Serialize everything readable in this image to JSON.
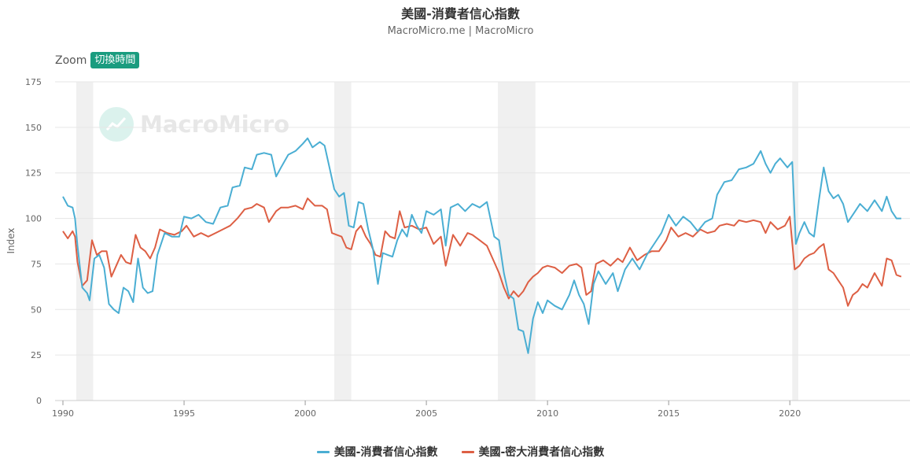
{
  "header": {
    "title": "美國-消費者信心指數",
    "subtitle": "MacroMicro.me | MacroMicro"
  },
  "controls": {
    "zoom_label": "Zoom",
    "toggle_time_label": "切換時間"
  },
  "watermark": {
    "text": "MacroMicro",
    "icon": "macromicro-logo-icon"
  },
  "colors": {
    "series1": "#4aaed3",
    "series2": "#dd5f44",
    "recession": "#f0f0f0",
    "grid": "#e6e6e6",
    "accent": "#1a9c7f"
  },
  "chart_data": {
    "type": "line",
    "ylabel": "Index",
    "ylim": [
      0,
      175
    ],
    "yticks": [
      0,
      25,
      50,
      75,
      100,
      125,
      150,
      175
    ],
    "xlim": [
      1990.0,
      2024.7
    ],
    "xticks": [
      1990,
      1995,
      2000,
      2005,
      2010,
      2015,
      2020
    ],
    "grid": true,
    "legend_position": "bottom-center",
    "recession_bands": [
      [
        1990.55,
        1991.25
      ],
      [
        2001.2,
        2001.9
      ],
      [
        2007.95,
        2009.5
      ],
      [
        2020.1,
        2020.35
      ]
    ],
    "series": [
      {
        "name": "美國-消費者信心指數",
        "points": [
          [
            1990.0,
            112
          ],
          [
            1990.2,
            107
          ],
          [
            1990.4,
            106
          ],
          [
            1990.5,
            100
          ],
          [
            1990.6,
            85
          ],
          [
            1990.8,
            62
          ],
          [
            1991.0,
            59
          ],
          [
            1991.1,
            55
          ],
          [
            1991.3,
            78
          ],
          [
            1991.5,
            80
          ],
          [
            1991.7,
            73
          ],
          [
            1991.9,
            53
          ],
          [
            1992.1,
            50
          ],
          [
            1992.3,
            48
          ],
          [
            1992.5,
            62
          ],
          [
            1992.7,
            60
          ],
          [
            1992.9,
            54
          ],
          [
            1993.1,
            78
          ],
          [
            1993.3,
            62
          ],
          [
            1993.5,
            59
          ],
          [
            1993.7,
            60
          ],
          [
            1993.9,
            80
          ],
          [
            1994.2,
            92
          ],
          [
            1994.5,
            90
          ],
          [
            1994.8,
            90
          ],
          [
            1995.0,
            101
          ],
          [
            1995.3,
            100
          ],
          [
            1995.6,
            102
          ],
          [
            1995.9,
            98
          ],
          [
            1996.2,
            97
          ],
          [
            1996.5,
            106
          ],
          [
            1996.8,
            107
          ],
          [
            1997.0,
            117
          ],
          [
            1997.3,
            118
          ],
          [
            1997.5,
            128
          ],
          [
            1997.8,
            127
          ],
          [
            1998.0,
            135
          ],
          [
            1998.3,
            136
          ],
          [
            1998.6,
            135
          ],
          [
            1998.8,
            123
          ],
          [
            1999.0,
            128
          ],
          [
            1999.3,
            135
          ],
          [
            1999.6,
            137
          ],
          [
            1999.9,
            141
          ],
          [
            2000.1,
            144
          ],
          [
            2000.3,
            139
          ],
          [
            2000.6,
            142
          ],
          [
            2000.8,
            140
          ],
          [
            2001.0,
            128
          ],
          [
            2001.2,
            116
          ],
          [
            2001.4,
            112
          ],
          [
            2001.6,
            114
          ],
          [
            2001.8,
            96
          ],
          [
            2002.0,
            95
          ],
          [
            2002.2,
            109
          ],
          [
            2002.4,
            108
          ],
          [
            2002.6,
            94
          ],
          [
            2002.8,
            83
          ],
          [
            2003.0,
            64
          ],
          [
            2003.2,
            81
          ],
          [
            2003.4,
            80
          ],
          [
            2003.6,
            79
          ],
          [
            2003.8,
            88
          ],
          [
            2004.0,
            94
          ],
          [
            2004.2,
            90
          ],
          [
            2004.4,
            102
          ],
          [
            2004.6,
            96
          ],
          [
            2004.8,
            92
          ],
          [
            2005.0,
            104
          ],
          [
            2005.3,
            102
          ],
          [
            2005.6,
            105
          ],
          [
            2005.8,
            85
          ],
          [
            2006.0,
            106
          ],
          [
            2006.3,
            108
          ],
          [
            2006.6,
            104
          ],
          [
            2006.9,
            108
          ],
          [
            2007.2,
            106
          ],
          [
            2007.5,
            109
          ],
          [
            2007.8,
            90
          ],
          [
            2008.0,
            88
          ],
          [
            2008.2,
            70
          ],
          [
            2008.4,
            58
          ],
          [
            2008.6,
            56
          ],
          [
            2008.8,
            39
          ],
          [
            2009.0,
            38
          ],
          [
            2009.2,
            26
          ],
          [
            2009.4,
            45
          ],
          [
            2009.6,
            54
          ],
          [
            2009.8,
            48
          ],
          [
            2010.0,
            55
          ],
          [
            2010.3,
            52
          ],
          [
            2010.6,
            50
          ],
          [
            2010.9,
            58
          ],
          [
            2011.1,
            66
          ],
          [
            2011.3,
            58
          ],
          [
            2011.5,
            53
          ],
          [
            2011.7,
            42
          ],
          [
            2011.9,
            64
          ],
          [
            2012.1,
            71
          ],
          [
            2012.4,
            64
          ],
          [
            2012.7,
            70
          ],
          [
            2012.9,
            60
          ],
          [
            2013.2,
            72
          ],
          [
            2013.5,
            78
          ],
          [
            2013.8,
            72
          ],
          [
            2014.1,
            80
          ],
          [
            2014.4,
            86
          ],
          [
            2014.7,
            92
          ],
          [
            2015.0,
            102
          ],
          [
            2015.3,
            96
          ],
          [
            2015.6,
            101
          ],
          [
            2015.9,
            98
          ],
          [
            2016.2,
            93
          ],
          [
            2016.5,
            98
          ],
          [
            2016.8,
            100
          ],
          [
            2017.0,
            113
          ],
          [
            2017.3,
            120
          ],
          [
            2017.6,
            121
          ],
          [
            2017.9,
            127
          ],
          [
            2018.2,
            128
          ],
          [
            2018.5,
            130
          ],
          [
            2018.8,
            137
          ],
          [
            2019.0,
            130
          ],
          [
            2019.2,
            125
          ],
          [
            2019.4,
            130
          ],
          [
            2019.6,
            133
          ],
          [
            2019.9,
            128
          ],
          [
            2020.1,
            131
          ],
          [
            2020.25,
            86
          ],
          [
            2020.4,
            92
          ],
          [
            2020.6,
            98
          ],
          [
            2020.8,
            92
          ],
          [
            2021.0,
            90
          ],
          [
            2021.2,
            110
          ],
          [
            2021.4,
            128
          ],
          [
            2021.6,
            115
          ],
          [
            2021.8,
            111
          ],
          [
            2022.0,
            113
          ],
          [
            2022.2,
            108
          ],
          [
            2022.4,
            98
          ],
          [
            2022.7,
            104
          ],
          [
            2022.9,
            108
          ],
          [
            2023.2,
            104
          ],
          [
            2023.5,
            110
          ],
          [
            2023.8,
            104
          ],
          [
            2024.0,
            112
          ],
          [
            2024.2,
            104
          ],
          [
            2024.4,
            100
          ],
          [
            2024.6,
            100
          ]
        ]
      },
      {
        "name": "美國-密大消費者信心指數",
        "points": [
          [
            1990.0,
            93
          ],
          [
            1990.2,
            89
          ],
          [
            1990.4,
            93
          ],
          [
            1990.5,
            90
          ],
          [
            1990.6,
            76
          ],
          [
            1990.8,
            63
          ],
          [
            1991.0,
            66
          ],
          [
            1991.2,
            88
          ],
          [
            1991.4,
            80
          ],
          [
            1991.6,
            82
          ],
          [
            1991.8,
            82
          ],
          [
            1992.0,
            68
          ],
          [
            1992.2,
            74
          ],
          [
            1992.4,
            80
          ],
          [
            1992.6,
            76
          ],
          [
            1992.8,
            75
          ],
          [
            1993.0,
            91
          ],
          [
            1993.2,
            84
          ],
          [
            1993.4,
            82
          ],
          [
            1993.6,
            78
          ],
          [
            1993.8,
            84
          ],
          [
            1994.0,
            94
          ],
          [
            1994.3,
            92
          ],
          [
            1994.6,
            91
          ],
          [
            1994.9,
            93
          ],
          [
            1995.1,
            96
          ],
          [
            1995.4,
            90
          ],
          [
            1995.7,
            92
          ],
          [
            1996.0,
            90
          ],
          [
            1996.3,
            92
          ],
          [
            1996.6,
            94
          ],
          [
            1996.9,
            96
          ],
          [
            1997.2,
            100
          ],
          [
            1997.5,
            105
          ],
          [
            1997.8,
            106
          ],
          [
            1998.0,
            108
          ],
          [
            1998.3,
            106
          ],
          [
            1998.5,
            98
          ],
          [
            1998.8,
            104
          ],
          [
            1999.0,
            106
          ],
          [
            1999.3,
            106
          ],
          [
            1999.6,
            107
          ],
          [
            1999.9,
            105
          ],
          [
            2000.1,
            111
          ],
          [
            2000.4,
            107
          ],
          [
            2000.7,
            107
          ],
          [
            2000.9,
            105
          ],
          [
            2001.1,
            92
          ],
          [
            2001.3,
            91
          ],
          [
            2001.5,
            90
          ],
          [
            2001.7,
            84
          ],
          [
            2001.9,
            83
          ],
          [
            2002.1,
            93
          ],
          [
            2002.3,
            96
          ],
          [
            2002.5,
            90
          ],
          [
            2002.7,
            86
          ],
          [
            2002.9,
            80
          ],
          [
            2003.1,
            79
          ],
          [
            2003.3,
            93
          ],
          [
            2003.5,
            90
          ],
          [
            2003.7,
            89
          ],
          [
            2003.9,
            104
          ],
          [
            2004.1,
            95
          ],
          [
            2004.4,
            96
          ],
          [
            2004.7,
            94
          ],
          [
            2005.0,
            95
          ],
          [
            2005.3,
            86
          ],
          [
            2005.6,
            90
          ],
          [
            2005.8,
            74
          ],
          [
            2006.1,
            91
          ],
          [
            2006.4,
            85
          ],
          [
            2006.7,
            92
          ],
          [
            2006.9,
            91
          ],
          [
            2007.2,
            88
          ],
          [
            2007.5,
            85
          ],
          [
            2007.8,
            76
          ],
          [
            2008.0,
            70
          ],
          [
            2008.2,
            62
          ],
          [
            2008.4,
            56
          ],
          [
            2008.6,
            60
          ],
          [
            2008.8,
            57
          ],
          [
            2009.0,
            60
          ],
          [
            2009.2,
            65
          ],
          [
            2009.4,
            68
          ],
          [
            2009.6,
            70
          ],
          [
            2009.8,
            73
          ],
          [
            2010.0,
            74
          ],
          [
            2010.3,
            73
          ],
          [
            2010.6,
            70
          ],
          [
            2010.9,
            74
          ],
          [
            2011.2,
            75
          ],
          [
            2011.4,
            73
          ],
          [
            2011.6,
            58
          ],
          [
            2011.8,
            60
          ],
          [
            2012.0,
            75
          ],
          [
            2012.3,
            77
          ],
          [
            2012.6,
            74
          ],
          [
            2012.9,
            78
          ],
          [
            2013.1,
            76
          ],
          [
            2013.4,
            84
          ],
          [
            2013.7,
            77
          ],
          [
            2014.0,
            80
          ],
          [
            2014.3,
            82
          ],
          [
            2014.6,
            82
          ],
          [
            2014.9,
            88
          ],
          [
            2015.1,
            95
          ],
          [
            2015.4,
            90
          ],
          [
            2015.7,
            92
          ],
          [
            2016.0,
            90
          ],
          [
            2016.3,
            94
          ],
          [
            2016.6,
            92
          ],
          [
            2016.9,
            93
          ],
          [
            2017.1,
            96
          ],
          [
            2017.4,
            97
          ],
          [
            2017.7,
            96
          ],
          [
            2017.9,
            99
          ],
          [
            2018.2,
            98
          ],
          [
            2018.5,
            99
          ],
          [
            2018.8,
            98
          ],
          [
            2019.0,
            92
          ],
          [
            2019.2,
            98
          ],
          [
            2019.5,
            94
          ],
          [
            2019.8,
            96
          ],
          [
            2020.0,
            101
          ],
          [
            2020.2,
            72
          ],
          [
            2020.4,
            74
          ],
          [
            2020.6,
            78
          ],
          [
            2020.8,
            80
          ],
          [
            2021.0,
            81
          ],
          [
            2021.2,
            84
          ],
          [
            2021.4,
            86
          ],
          [
            2021.6,
            72
          ],
          [
            2021.8,
            70
          ],
          [
            2022.0,
            66
          ],
          [
            2022.2,
            62
          ],
          [
            2022.4,
            52
          ],
          [
            2022.6,
            58
          ],
          [
            2022.8,
            60
          ],
          [
            2023.0,
            64
          ],
          [
            2023.2,
            62
          ],
          [
            2023.5,
            70
          ],
          [
            2023.8,
            63
          ],
          [
            2024.0,
            78
          ],
          [
            2024.2,
            77
          ],
          [
            2024.4,
            69
          ],
          [
            2024.6,
            68
          ]
        ]
      }
    ]
  }
}
